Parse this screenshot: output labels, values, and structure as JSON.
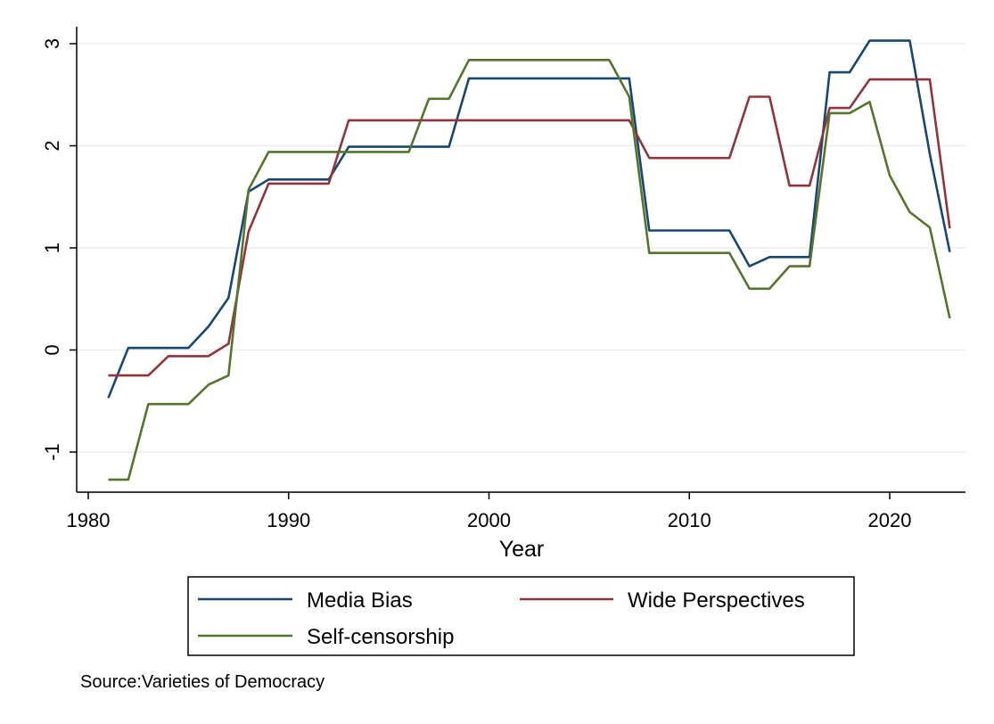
{
  "chart_data": {
    "type": "line",
    "title": "",
    "xlabel": "Year",
    "ylabel": "",
    "xlim": [
      1980,
      2023
    ],
    "ylim": [
      -1.4,
      3.1
    ],
    "xticks": [
      1980,
      1990,
      2000,
      2010,
      2020
    ],
    "yticks": [
      3,
      2,
      1,
      0,
      -1
    ],
    "grid": true,
    "legend_position": "bottom",
    "x": [
      1981,
      1982,
      1983,
      1984,
      1985,
      1986,
      1987,
      1988,
      1989,
      1990,
      1991,
      1992,
      1993,
      1994,
      1995,
      1996,
      1997,
      1998,
      1999,
      2000,
      2001,
      2002,
      2003,
      2004,
      2005,
      2006,
      2007,
      2008,
      2009,
      2010,
      2011,
      2012,
      2013,
      2014,
      2015,
      2016,
      2017,
      2018,
      2019,
      2020,
      2021,
      2022,
      2023
    ],
    "series": [
      {
        "name": "Media Bias",
        "color": "#1a476f",
        "values": [
          -0.47,
          0.02,
          0.02,
          0.02,
          0.02,
          0.23,
          0.51,
          1.55,
          1.67,
          1.67,
          1.67,
          1.67,
          1.99,
          1.99,
          1.99,
          1.99,
          1.99,
          1.99,
          2.66,
          2.66,
          2.66,
          2.66,
          2.66,
          2.66,
          2.66,
          2.66,
          2.66,
          1.17,
          1.17,
          1.17,
          1.17,
          1.17,
          0.82,
          0.91,
          0.91,
          0.91,
          2.72,
          2.72,
          3.03,
          3.03,
          3.03,
          1.92,
          0.96
        ]
      },
      {
        "name": "Wide Perspectives",
        "color": "#90353b",
        "values": [
          -0.25,
          -0.25,
          -0.25,
          -0.06,
          -0.06,
          -0.06,
          0.06,
          1.16,
          1.63,
          1.63,
          1.63,
          1.63,
          2.25,
          2.25,
          2.25,
          2.25,
          2.25,
          2.25,
          2.25,
          2.25,
          2.25,
          2.25,
          2.25,
          2.25,
          2.25,
          2.25,
          2.25,
          1.88,
          1.88,
          1.88,
          1.88,
          1.88,
          2.48,
          2.48,
          1.61,
          1.61,
          2.37,
          2.37,
          2.65,
          2.65,
          2.65,
          2.65,
          1.19
        ]
      },
      {
        "name": "Self-censorship",
        "color": "#55752f",
        "values": [
          -1.27,
          -1.27,
          -0.53,
          -0.53,
          -0.53,
          -0.34,
          -0.25,
          1.57,
          1.94,
          1.94,
          1.94,
          1.94,
          1.94,
          1.94,
          1.94,
          1.94,
          2.46,
          2.46,
          2.84,
          2.84,
          2.84,
          2.84,
          2.84,
          2.84,
          2.84,
          2.84,
          2.48,
          0.95,
          0.95,
          0.95,
          0.95,
          0.95,
          0.6,
          0.6,
          0.82,
          0.82,
          2.32,
          2.32,
          2.43,
          1.71,
          1.35,
          1.2,
          0.31
        ]
      }
    ],
    "source_note": "Source:Varieties of Democracy"
  }
}
